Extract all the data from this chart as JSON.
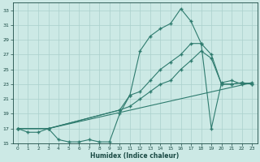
{
  "xlabel": "Humidex (Indice chaleur)",
  "bg_color": "#cce9e5",
  "grid_color": "#aad0cc",
  "line_color": "#2e7b6e",
  "xlim": [
    -0.5,
    23.5
  ],
  "ylim": [
    15,
    34
  ],
  "xticks": [
    0,
    1,
    2,
    3,
    4,
    5,
    6,
    7,
    8,
    9,
    10,
    11,
    12,
    13,
    14,
    15,
    16,
    17,
    18,
    19,
    20,
    21,
    22,
    23
  ],
  "yticks": [
    15,
    17,
    19,
    21,
    23,
    25,
    27,
    29,
    31,
    33
  ],
  "line1_x": [
    0,
    1,
    2,
    3,
    4,
    5,
    6,
    7,
    8,
    9,
    10,
    11,
    12,
    13,
    14,
    15,
    16,
    17,
    18,
    19,
    20,
    21,
    22,
    23
  ],
  "line1_y": [
    17,
    16.5,
    16.5,
    17,
    15.5,
    15.2,
    15.2,
    15.5,
    15.2,
    15.2,
    19,
    21.5,
    27.5,
    29.5,
    30.5,
    31.2,
    33.2,
    31.5,
    28.5,
    17,
    23.2,
    23.5,
    23,
    23.2
  ],
  "line2_x": [
    0,
    3,
    10,
    11,
    12,
    13,
    14,
    15,
    16,
    17,
    18,
    19,
    20,
    21,
    22,
    23
  ],
  "line2_y": [
    17,
    17,
    19.5,
    20,
    21,
    22,
    23,
    23.5,
    25,
    26.2,
    27.5,
    26.5,
    23,
    23,
    23.2,
    23
  ],
  "line3_x": [
    0,
    3,
    23
  ],
  "line3_y": [
    17,
    17,
    23.2
  ],
  "line4_x": [
    0,
    3,
    10,
    11,
    12,
    13,
    14,
    15,
    16,
    17,
    18,
    19,
    20,
    21,
    22,
    23
  ],
  "line4_y": [
    17,
    17,
    19.5,
    21.5,
    22,
    23.5,
    25,
    26,
    27,
    28.5,
    28.5,
    27,
    23,
    23,
    23.2,
    23
  ]
}
